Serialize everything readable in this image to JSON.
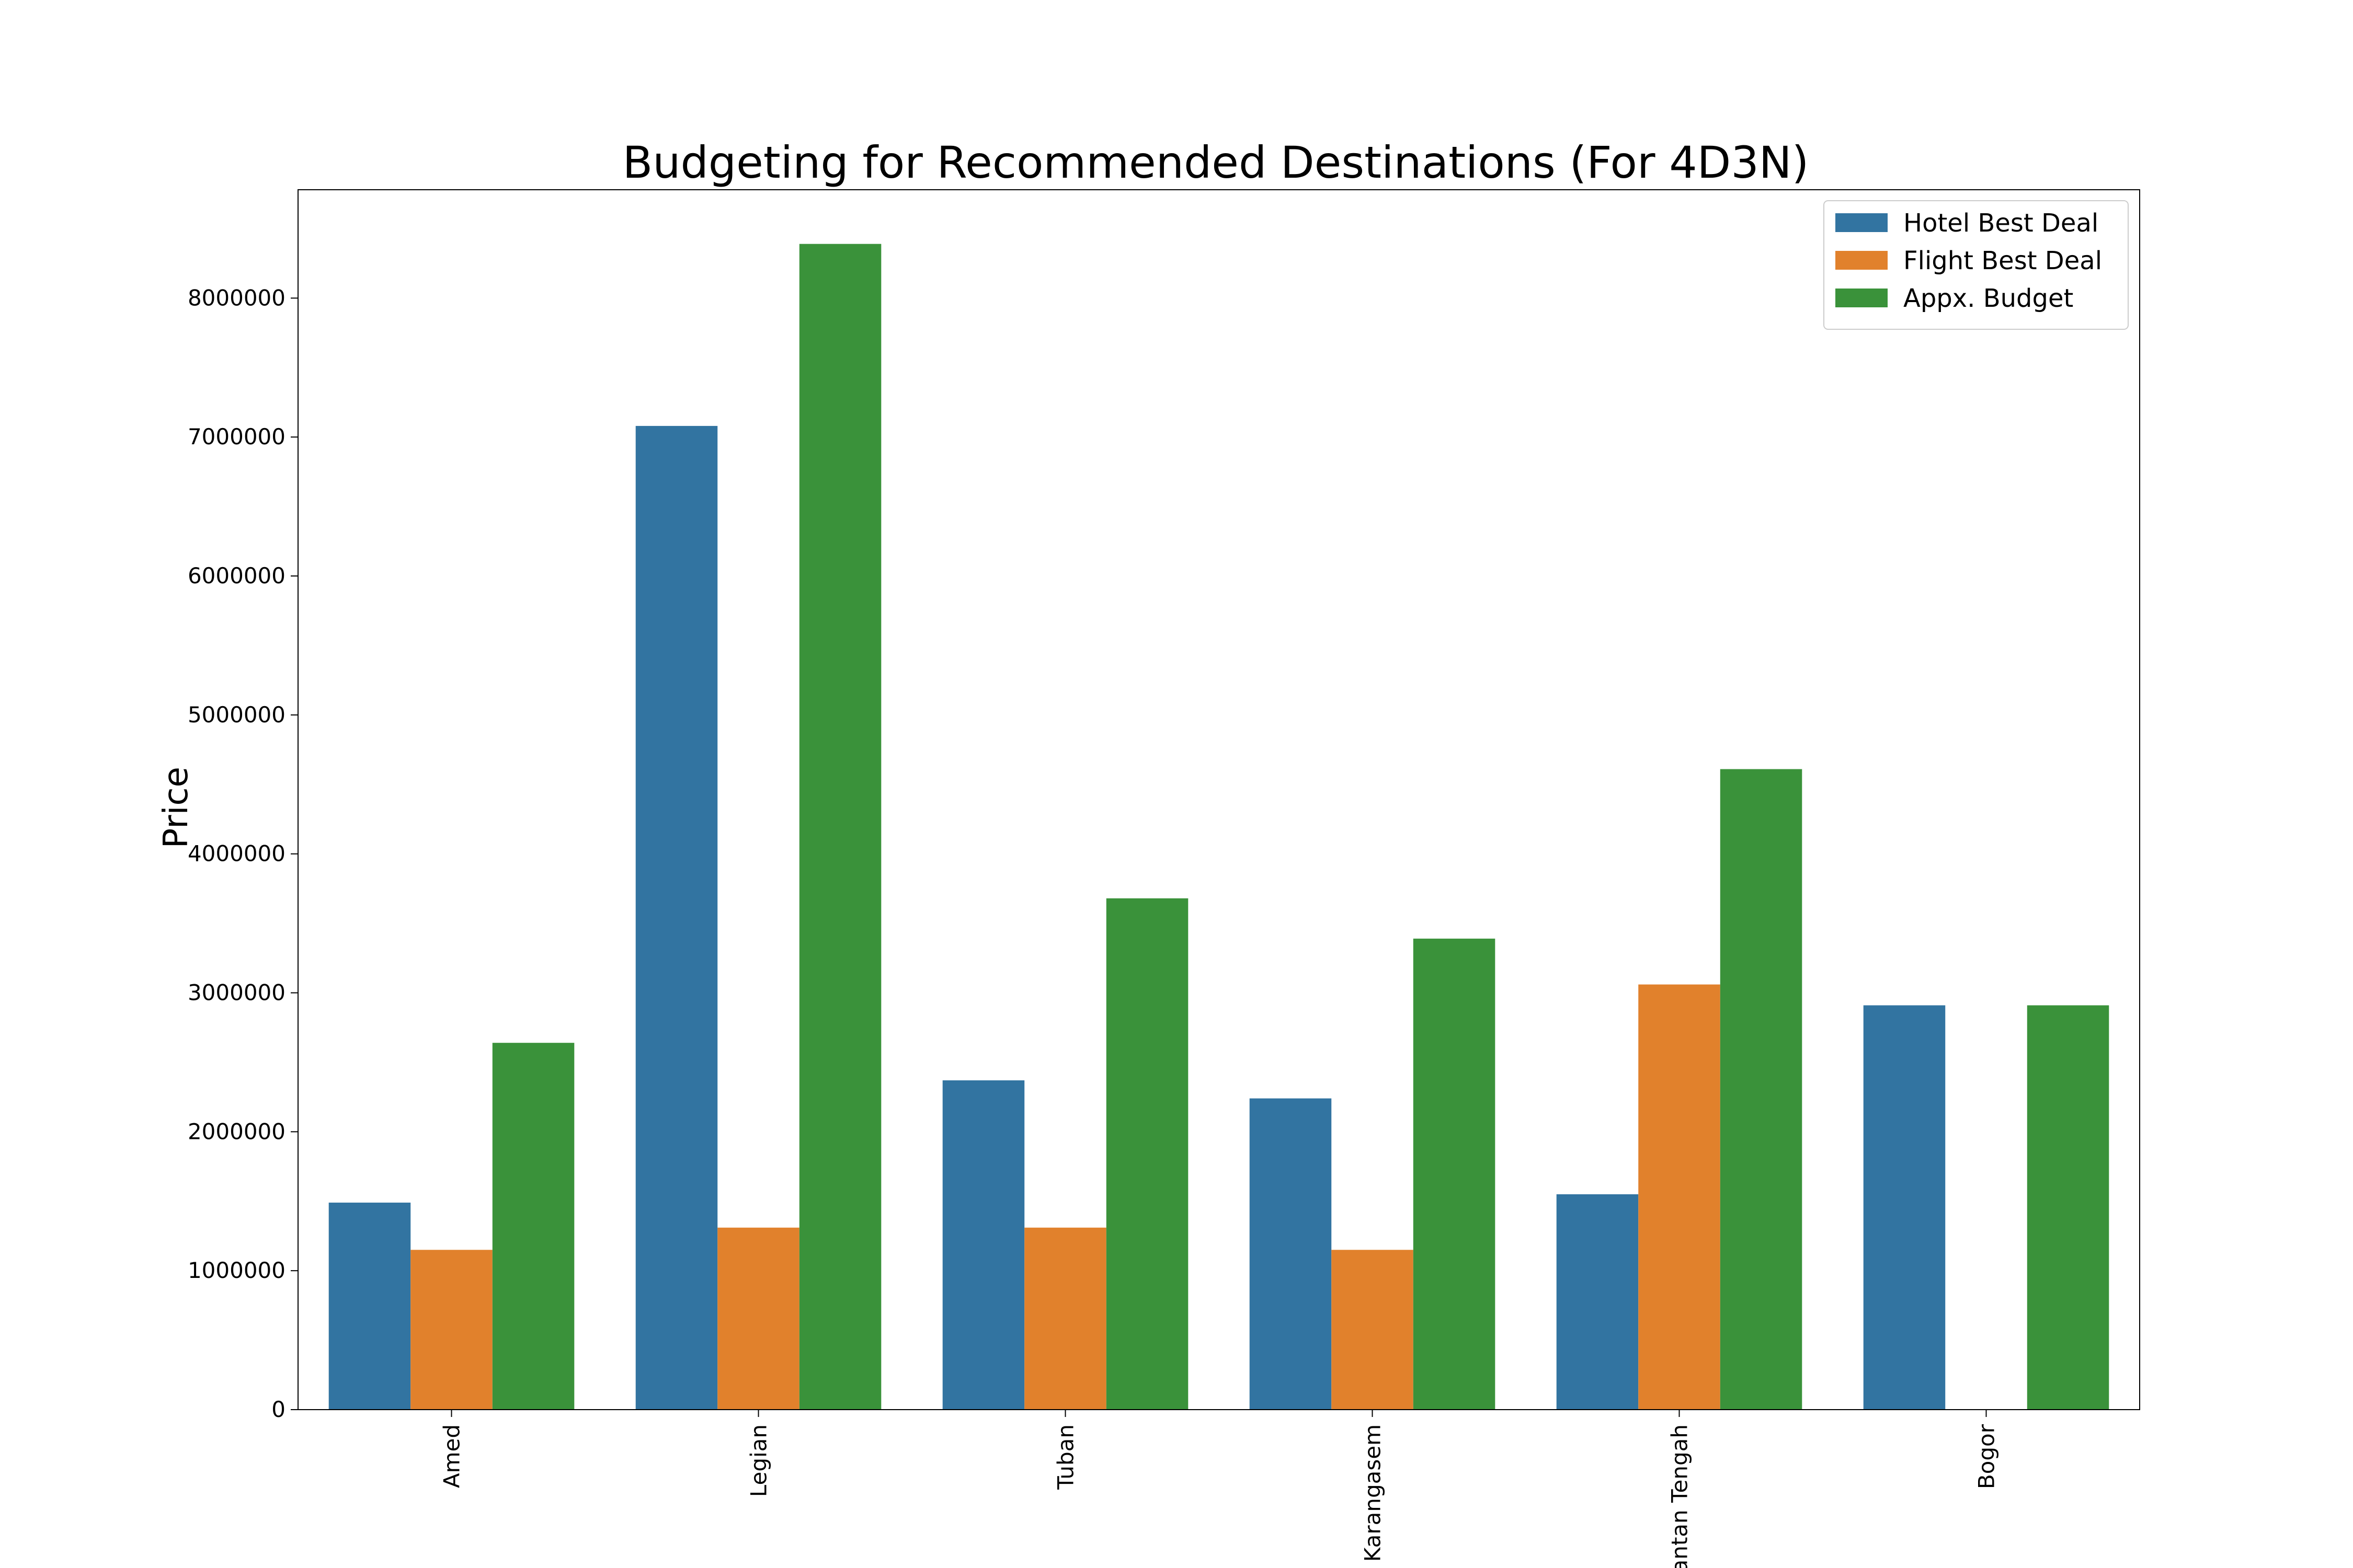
{
  "chart_data": {
    "type": "bar",
    "title": "Budgeting for Recommended Destinations (For 4D3N)",
    "xlabel": "",
    "ylabel": "Price",
    "ylim": [
      0,
      8780000
    ],
    "yticks": [
      0,
      1000000,
      2000000,
      3000000,
      4000000,
      5000000,
      6000000,
      7000000,
      8000000
    ],
    "categories": [
      "Amed",
      "Legian",
      "Tuban",
      "Karangasem",
      "Kalimantan Tengah",
      "Bogor"
    ],
    "series": [
      {
        "name": "Hotel Best Deal",
        "color": "#3274a1",
        "values": [
          1490000,
          7080000,
          2370000,
          2240000,
          1550000,
          2910000
        ]
      },
      {
        "name": "Flight Best Deal",
        "color": "#e1812c",
        "values": [
          1150000,
          1310000,
          1310000,
          1150000,
          3060000,
          0
        ]
      },
      {
        "name": "Appx. Budget",
        "color": "#3a923a",
        "values": [
          2640000,
          8390000,
          3680000,
          3390000,
          4610000,
          2910000
        ]
      }
    ],
    "grid": false,
    "legend_position": "top-right",
    "x_tick_rotation": "vertical"
  }
}
